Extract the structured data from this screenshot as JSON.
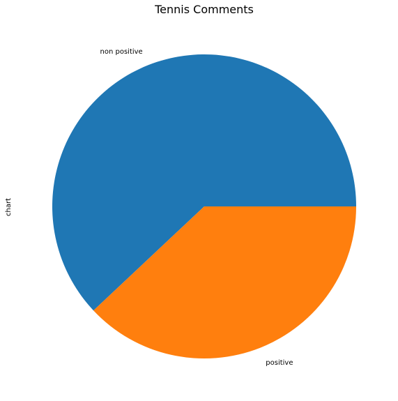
{
  "chart_data": {
    "type": "pie",
    "title": "Tennis Comments",
    "ylabel": "chart",
    "start_angle_deg": 0,
    "direction": "counterclockwise",
    "slices": [
      {
        "label": "non positive",
        "value": 0.62,
        "color": "#1f77b4"
      },
      {
        "label": "positive",
        "value": 0.38,
        "color": "#ff7f0e"
      }
    ]
  }
}
